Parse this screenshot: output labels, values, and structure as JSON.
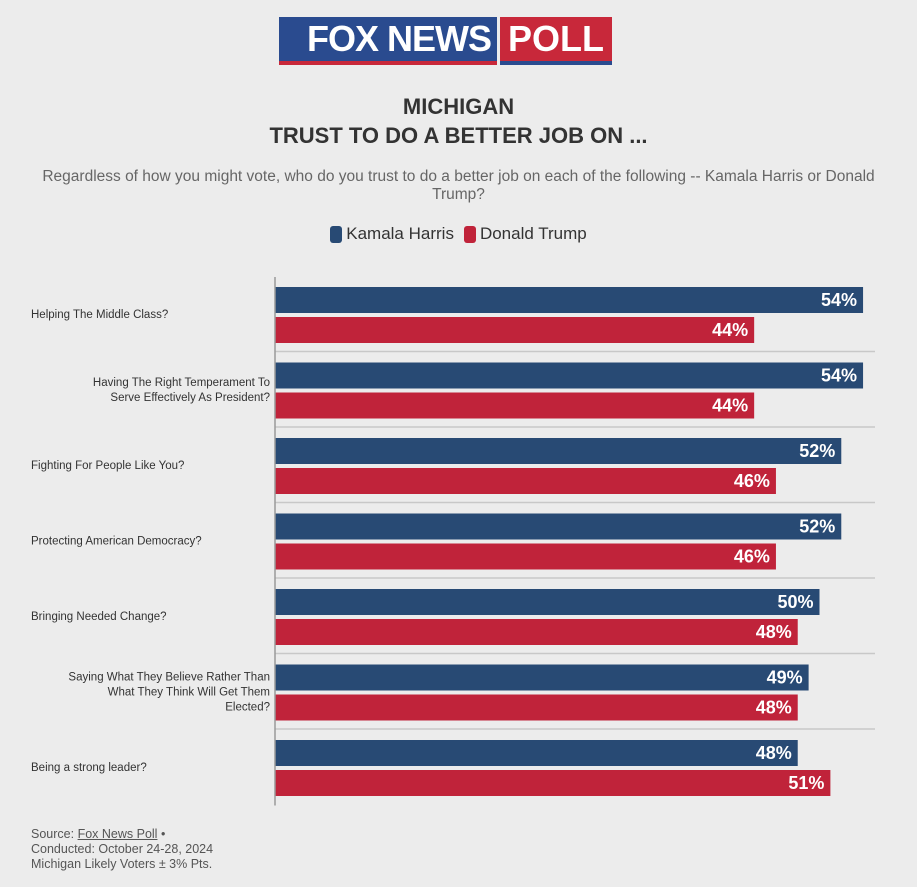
{
  "logo": {
    "text": "FOX NEWS POLL",
    "left": "FOX NEWS",
    "right": "POLL"
  },
  "colors": {
    "harris": "#284a74",
    "trump": "#c0233a"
  },
  "chart_data": {
    "type": "bar",
    "orientation": "horizontal",
    "title": "MICHIGAN",
    "title2": "TRUST TO DO A BETTER JOB ON ...",
    "subtitle": "Regardless of how you might vote, who do you trust to do a better job on each of the following -- Kamala Harris or Donald Trump?",
    "legend_position": "top",
    "categories": [
      "Helping The Middle Class?",
      "Having The Right Temperament To Serve Effectively As President?",
      "Fighting For People Like You?",
      "Protecting American Democracy?",
      "Bringing Needed Change?",
      "Saying What They Believe Rather Than What They Think Will Get Them Elected?",
      "Being a strong leader?"
    ],
    "series": [
      {
        "name": "Kamala Harris",
        "values": [
          54,
          54,
          52,
          52,
          50,
          49,
          48
        ]
      },
      {
        "name": "Donald Trump",
        "values": [
          44,
          44,
          46,
          46,
          48,
          48,
          51
        ]
      }
    ]
  },
  "footer": {
    "source_label": "Source:",
    "source_link": "Fox News Poll",
    "bullet": "•",
    "conducted": "Conducted: October 24-28, 2024",
    "sample": "Michigan Likely Voters ± 3% Pts."
  }
}
